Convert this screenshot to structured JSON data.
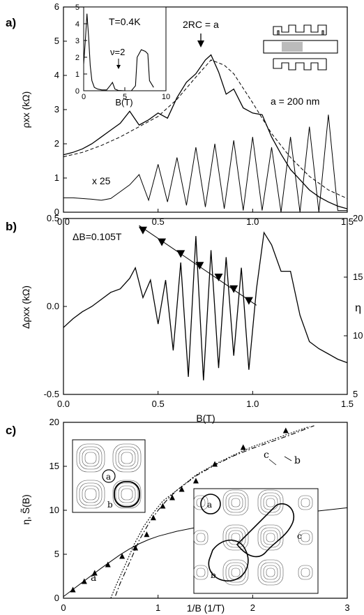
{
  "chart_data": [
    {
      "type": "line",
      "panel_label": "a)",
      "xlabel": "",
      "ylabel": "ρxx (kΩ)",
      "xlim": [
        0,
        1.5
      ],
      "ylim": [
        0,
        6
      ],
      "xticks": [
        "0.0",
        "0.5",
        "1.0",
        "1.5"
      ],
      "yticks": [
        "0",
        "1",
        "2",
        "3",
        "4",
        "5",
        "6"
      ],
      "annotations": [
        "2RC = a",
        "a = 200 nm",
        "x 25"
      ],
      "series": [
        {
          "x": [
            0.0,
            0.05,
            0.1,
            0.15,
            0.2,
            0.25,
            0.3,
            0.35,
            0.4,
            0.45,
            0.5,
            0.55,
            0.6,
            0.65,
            0.7,
            0.75,
            0.78,
            0.82,
            0.86,
            0.9,
            0.95,
            1.0,
            1.05,
            1.1,
            1.15,
            1.2,
            1.25,
            1.3,
            1.35,
            1.4,
            1.45,
            1.5
          ],
          "y": [
            1.68,
            1.75,
            1.85,
            2.0,
            2.2,
            2.4,
            2.6,
            2.95,
            2.55,
            2.7,
            2.9,
            2.75,
            3.35,
            3.8,
            4.05,
            4.45,
            4.6,
            4.1,
            3.45,
            3.6,
            3.05,
            2.9,
            2.85,
            2.2,
            1.7,
            1.25,
            0.95,
            0.65,
            0.45,
            0.3,
            0.18,
            0.1
          ]
        },
        {
          "x": [
            0.0,
            0.1,
            0.2,
            0.3,
            0.4,
            0.5,
            0.6,
            0.7,
            0.78,
            0.85,
            0.9,
            1.0,
            1.1,
            1.2,
            1.3,
            1.4,
            1.5
          ],
          "y": [
            1.62,
            1.75,
            1.95,
            2.2,
            2.5,
            2.8,
            3.3,
            3.95,
            4.45,
            4.3,
            4.05,
            3.2,
            2.3,
            1.6,
            1.05,
            0.65,
            0.4
          ]
        },
        {
          "x": [
            0.0,
            0.05,
            0.1,
            0.15,
            0.2,
            0.25,
            0.3,
            0.35,
            0.4,
            0.45,
            0.5,
            0.55,
            0.6,
            0.65,
            0.7,
            0.75,
            0.8,
            0.85,
            0.9,
            0.95,
            1.0,
            1.05,
            1.1,
            1.15,
            1.2,
            1.25,
            1.3,
            1.35,
            1.4,
            1.45,
            1.5
          ],
          "y": [
            0.42,
            0.42,
            0.4,
            0.38,
            0.35,
            0.4,
            0.6,
            0.8,
            1.1,
            0.35,
            1.4,
            0.3,
            1.6,
            0.2,
            1.9,
            0.15,
            2.0,
            0.1,
            2.1,
            0.05,
            2.2,
            0.05,
            1.9,
            0.0,
            2.2,
            0.0,
            2.5,
            0.0,
            2.85,
            0.05,
            0.05
          ]
        }
      ],
      "inset": {
        "annotations": [
          "T=0.4K",
          "ν=2"
        ],
        "xlabel": "B(T)",
        "xlim": [
          0,
          10
        ],
        "ylim": [
          0,
          5
        ],
        "xticks": [
          "0",
          "5",
          "10"
        ],
        "yticks": [
          "0",
          "1",
          "2",
          "3",
          "4",
          "5"
        ],
        "x": [
          0.0,
          0.2,
          0.4,
          0.6,
          0.8,
          1.0,
          1.3,
          1.7,
          2.2,
          2.8,
          3.2,
          3.5,
          3.8,
          4.2,
          5.0,
          5.8,
          6.3,
          6.5,
          7.0,
          7.5,
          7.8,
          8.0,
          8.5
        ],
        "y": [
          1.6,
          3.0,
          4.6,
          3.2,
          1.5,
          0.6,
          0.2,
          0.1,
          0.05,
          0.05,
          0.3,
          0.5,
          0.1,
          0.02,
          0.0,
          0.0,
          0.3,
          2.0,
          2.45,
          2.35,
          2.2,
          0.6,
          0.2
        ]
      }
    },
    {
      "type": "line",
      "panel_label": "b)",
      "xlabel": "B(T)",
      "ylabel": "Δρxx (kΩ)",
      "ylabel_right": "η",
      "xlim": [
        0,
        1.5
      ],
      "ylim": [
        -0.5,
        0.5
      ],
      "y2lim": [
        5,
        20
      ],
      "xticks": [
        "0.0",
        "0.5",
        "1.0",
        "1.5"
      ],
      "yticks": [
        "-0.5",
        "0.0",
        "0.5"
      ],
      "y2ticks": [
        "5",
        "10",
        "15",
        "20"
      ],
      "annotations": [
        "ΔB=0.105T"
      ],
      "series": [
        {
          "x": [
            0.0,
            0.05,
            0.1,
            0.15,
            0.2,
            0.25,
            0.3,
            0.35,
            0.38,
            0.42,
            0.46,
            0.5,
            0.54,
            0.58,
            0.62,
            0.66,
            0.7,
            0.74,
            0.78,
            0.82,
            0.86,
            0.9,
            0.94,
            0.98,
            1.02,
            1.06,
            1.1,
            1.15,
            1.2,
            1.25,
            1.3,
            1.35,
            1.4,
            1.45,
            1.5
          ],
          "y": [
            -0.12,
            -0.07,
            -0.03,
            0.0,
            0.04,
            0.08,
            0.1,
            0.16,
            0.22,
            0.05,
            0.15,
            -0.1,
            0.15,
            -0.25,
            0.25,
            -0.4,
            0.4,
            -0.42,
            0.32,
            -0.35,
            0.28,
            -0.28,
            0.22,
            -0.36,
            0.1,
            0.42,
            0.35,
            0.2,
            0.2,
            -0.05,
            -0.2,
            -0.24,
            -0.27,
            -0.3,
            -0.32
          ]
        }
      ],
      "markers": {
        "x": [
          0.42,
          0.52,
          0.62,
          0.72,
          0.82,
          0.9,
          0.98
        ],
        "y": [
          19,
          18,
          17,
          16,
          15,
          14,
          13
        ]
      },
      "fit_line": {
        "x": [
          0.4,
          1.02
        ],
        "y": [
          19.4,
          12.6
        ]
      }
    },
    {
      "type": "line",
      "panel_label": "c)",
      "xlabel": "1/B (1/T)",
      "ylabel": "η, S̃(B)",
      "xlim": [
        0,
        3
      ],
      "ylim": [
        0,
        21
      ],
      "xticks": [
        "0",
        "1",
        "2",
        "3"
      ],
      "yticks": [
        "0",
        "5",
        "10",
        "15",
        "20"
      ],
      "annotations": [
        "a",
        "b",
        "c"
      ],
      "markers": {
        "x": [
          0.1,
          0.22,
          0.33,
          0.47,
          0.62,
          0.76,
          0.88,
          0.95,
          1.05,
          1.15,
          1.25,
          1.4,
          1.6,
          1.9,
          2.35
        ],
        "y": [
          1,
          2,
          3,
          4,
          5,
          6,
          7.6,
          9.6,
          11,
          12,
          13,
          14,
          16,
          18,
          20
        ]
      },
      "series": [
        {
          "name": "a",
          "x": [
            0.0,
            0.1,
            0.2,
            0.3,
            0.4,
            0.5,
            0.6,
            0.7,
            0.8,
            0.9,
            1.0,
            1.2,
            1.4,
            1.6,
            1.8,
            2.0,
            2.2,
            2.4,
            2.6,
            2.8,
            3.0
          ],
          "y": [
            0.2,
            1.05,
            1.9,
            2.75,
            3.6,
            4.4,
            5.2,
            5.9,
            6.5,
            7.0,
            7.4,
            8.0,
            8.45,
            8.85,
            9.2,
            9.5,
            9.8,
            10.05,
            10.3,
            10.55,
            10.8
          ]
        },
        {
          "name": "b",
          "x": [
            0.55,
            0.6,
            0.7,
            0.8,
            0.9,
            1.0,
            1.1,
            1.2,
            1.4,
            1.6,
            1.8,
            2.0,
            2.2,
            2.4,
            2.65
          ],
          "y": [
            0.3,
            1.8,
            4.3,
            6.9,
            8.9,
            10.5,
            11.8,
            12.9,
            14.6,
            15.9,
            17.0,
            17.9,
            18.7,
            19.5,
            20.6
          ]
        },
        {
          "name": "c",
          "x": [
            0.5,
            0.55,
            0.65,
            0.75,
            0.85,
            0.95,
            1.05,
            1.2,
            1.4,
            1.6,
            1.8,
            2.0,
            2.2,
            2.4,
            2.6
          ],
          "y": [
            0.0,
            1.4,
            3.9,
            6.5,
            8.6,
            10.2,
            11.6,
            12.9,
            14.7,
            16.0,
            17.1,
            18.1,
            18.9,
            19.7,
            20.5
          ]
        }
      ],
      "insets": [
        {
          "annotations": [
            "a",
            "b"
          ]
        },
        {
          "annotations": [
            "a",
            "b",
            "c"
          ]
        }
      ]
    }
  ]
}
